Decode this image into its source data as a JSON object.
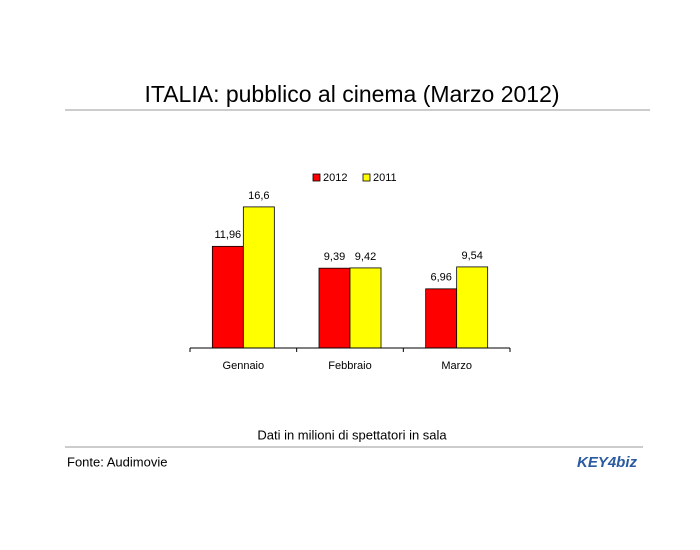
{
  "chart_data": {
    "type": "bar",
    "title": "ITALIA: pubblico al cinema (Marzo 2012)",
    "subtitle": "Dati in milioni di spettatori in sala",
    "source": "Fonte: Audimovie",
    "logo": "KEY4biz",
    "categories": [
      "Gennaio",
      "Febbraio",
      "Marzo"
    ],
    "series": [
      {
        "name": "2012",
        "color": "#ff0000",
        "values": [
          11.96,
          9.39,
          6.96
        ],
        "value_labels": [
          "11,96",
          "9,39",
          "6,96"
        ]
      },
      {
        "name": "2011",
        "color": "#ffff00",
        "values": [
          16.6,
          9.42,
          9.54
        ],
        "value_labels": [
          "16,6",
          "9,42",
          "9,54"
        ]
      }
    ],
    "ylim": [
      0,
      18
    ],
    "legend": "top"
  }
}
